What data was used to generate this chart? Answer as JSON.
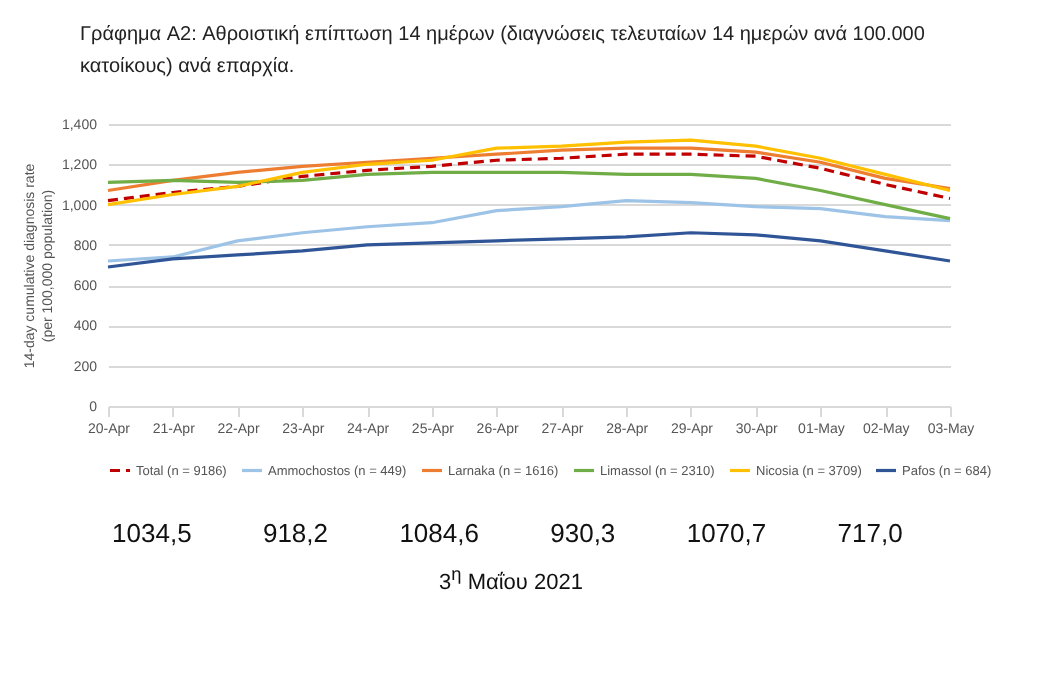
{
  "chart_data": {
    "type": "line",
    "title": "Γράφημα A2: Αθροιστική επίπτωση 14 ημέρων (διαγνώσεις τελευταίων 14 ημερών ανά 100.000 κατοίκους) ανά επαρχία.",
    "ylabel": "14-day cumulative diagnosis rate (per 100,000 population)",
    "categories": [
      "20-Apr",
      "21-Apr",
      "22-Apr",
      "23-Apr",
      "24-Apr",
      "25-Apr",
      "26-Apr",
      "27-Apr",
      "28-Apr",
      "29-Apr",
      "30-Apr",
      "01-May",
      "02-May",
      "03-May"
    ],
    "series": [
      {
        "name": "Total (n = 9186)",
        "color": "#c00000",
        "line_style": "dashed",
        "values": [
          1020,
          1060,
          1090,
          1140,
          1170,
          1190,
          1220,
          1230,
          1250,
          1250,
          1240,
          1180,
          1100,
          1030
        ]
      },
      {
        "name": "Ammochostos (n = 449)",
        "color": "#9dc3e6",
        "values": [
          720,
          740,
          820,
          860,
          890,
          910,
          970,
          990,
          1020,
          1010,
          990,
          980,
          940,
          920
        ]
      },
      {
        "name": "Larnaka (n = 1616)",
        "color": "#ed7d31",
        "values": [
          1070,
          1120,
          1160,
          1190,
          1210,
          1230,
          1250,
          1270,
          1280,
          1280,
          1260,
          1210,
          1130,
          1080
        ]
      },
      {
        "name": "Limassol (n = 2310)",
        "color": "#70ad47",
        "values": [
          1110,
          1120,
          1110,
          1120,
          1150,
          1160,
          1160,
          1160,
          1150,
          1150,
          1130,
          1070,
          1000,
          930
        ]
      },
      {
        "name": "Nicosia (n = 3709)",
        "color": "#ffc000",
        "values": [
          1000,
          1050,
          1090,
          1160,
          1200,
          1220,
          1280,
          1290,
          1310,
          1320,
          1290,
          1230,
          1150,
          1070
        ]
      },
      {
        "name": "Pafos (n = 684)",
        "color": "#2f5597",
        "values": [
          690,
          730,
          750,
          770,
          800,
          810,
          820,
          830,
          840,
          860,
          850,
          820,
          770,
          720
        ]
      }
    ],
    "ylim": [
      0,
      1400
    ],
    "yticks": [
      0,
      200,
      400,
      600,
      800,
      {
        "value": 1000,
        "label": "1,000"
      },
      {
        "value": 1200,
        "label": "1,200"
      },
      {
        "value": 1400,
        "label": "1,400"
      }
    ],
    "grid": "y",
    "legend": "bottom",
    "line_style": "solid",
    "marker": "none",
    "annotations": [
      "1034,5",
      "918,2",
      "1084,6",
      "930,3",
      "1070,7",
      "717,0",
      "3$^{η}$ Μαΐου 2021"
    ]
  }
}
